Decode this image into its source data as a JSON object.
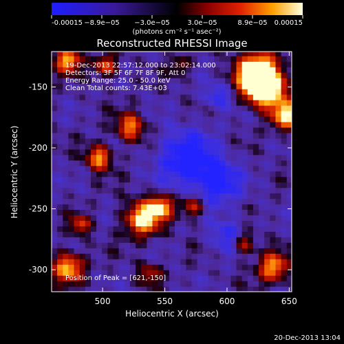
{
  "colorbar": {
    "tick_labels": [
      "-0.00015",
      "−8.9e−05",
      "−3.0e−05",
      "3.0e−05",
      "8.9e−05",
      "0.00015"
    ],
    "unit_label": "(photons cm⁻² s⁻¹ asec⁻²)"
  },
  "chart_data": {
    "type": "heatmap",
    "title": "Reconstructed RHESSI Image",
    "xlabel": "Heliocentric X (arcsec)",
    "ylabel": "Heliocentric Y (arcsec)",
    "xlim": [
      459,
      652
    ],
    "ylim": [
      -318,
      -121
    ],
    "xticks": [
      500,
      550,
      600,
      650
    ],
    "yticks": [
      -150,
      -200,
      -250,
      -300
    ],
    "value_range": [
      -0.00015,
      0.00015
    ],
    "annotations": [
      "19-Dec-2013 22:57:12.000 to 23:02:14.000",
      "Detectors: 3F 5F 6F 7F 8F 9F, Att 0",
      "Energy Range: 25.0 - 50.0 keV",
      "Clean     Total counts: 7.43E+03"
    ],
    "peak_label": "Position of Peak = [621,-150]",
    "peak_position": [
      621,
      -150
    ]
  },
  "timestamp": "20-Dec-2013 13:04"
}
